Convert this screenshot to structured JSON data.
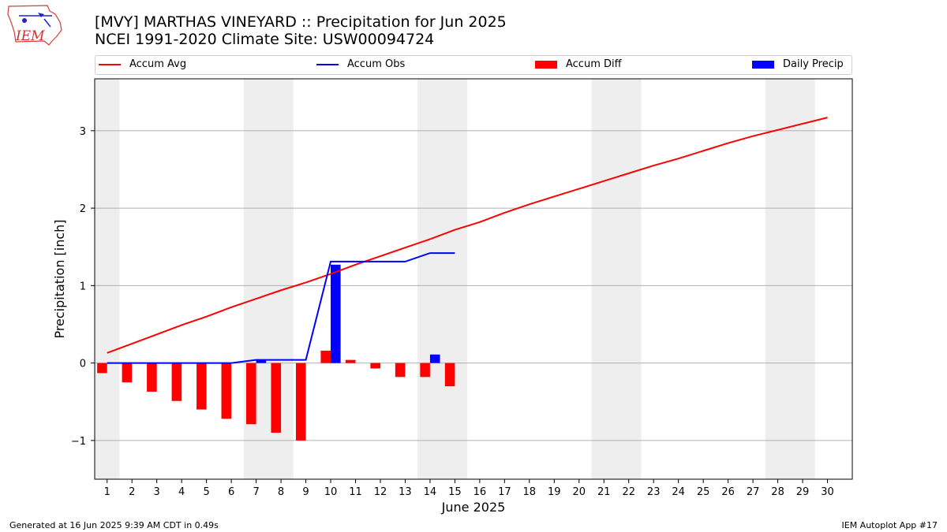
{
  "header": {
    "title_line1": "[MVY] MARTHAS VINEYARD :: Precipitation for Jun 2025",
    "title_line2": "NCEI 1991-2020 Climate Site: USW00094724"
  },
  "logo": {
    "text": "IEM",
    "icon": "iem-iowa-logo-icon"
  },
  "legend": {
    "position": "top",
    "items": [
      {
        "label": "Accum Avg",
        "kind": "line",
        "color": "#ff0000"
      },
      {
        "label": "Accum Obs",
        "kind": "line",
        "color": "#0000ff"
      },
      {
        "label": "Accum Diff",
        "kind": "box",
        "color": "#ff0000"
      },
      {
        "label": "Daily Precip",
        "kind": "box",
        "color": "#0000ff"
      }
    ]
  },
  "footer": {
    "left": "Generated at 16 Jun 2025 9:39 AM CDT in 0.49s",
    "right": "IEM Autoplot App #17"
  },
  "chart_data": {
    "type": "bar",
    "xlabel": "June 2025",
    "ylabel": "Precipitation [inch]",
    "xlim": [
      0.5,
      31.0
    ],
    "ylim": [
      -1.5,
      3.67
    ],
    "x_ticks": [
      1,
      2,
      3,
      4,
      5,
      6,
      7,
      8,
      9,
      10,
      11,
      12,
      13,
      14,
      15,
      16,
      17,
      18,
      19,
      20,
      21,
      22,
      23,
      24,
      25,
      26,
      27,
      28,
      29,
      30
    ],
    "y_ticks": [
      -1,
      0,
      1,
      2,
      3
    ],
    "y_tick_labels": [
      "−1",
      "0",
      "1",
      "2",
      "3"
    ],
    "grid": "y",
    "weekend_shading": [
      [
        0.5,
        1.5
      ],
      [
        6.5,
        8.5
      ],
      [
        13.5,
        15.5
      ],
      [
        20.5,
        22.5
      ],
      [
        27.5,
        29.5
      ]
    ],
    "shading_color": "#eeeeee",
    "series": [
      {
        "name": "Accum Avg",
        "type": "line",
        "color": "#ff0000",
        "x": [
          1,
          2,
          3,
          4,
          5,
          6,
          7,
          8,
          9,
          10,
          11,
          12,
          13,
          14,
          15,
          16,
          17,
          18,
          19,
          20,
          21,
          22,
          23,
          24,
          25,
          26,
          27,
          28,
          29,
          30
        ],
        "values": [
          0.13,
          0.25,
          0.37,
          0.49,
          0.6,
          0.72,
          0.83,
          0.94,
          1.04,
          1.15,
          1.27,
          1.38,
          1.49,
          1.6,
          1.72,
          1.82,
          1.94,
          2.05,
          2.15,
          2.25,
          2.35,
          2.45,
          2.55,
          2.64,
          2.74,
          2.84,
          2.93,
          3.01,
          3.09,
          3.17
        ]
      },
      {
        "name": "Accum Obs",
        "type": "line",
        "color": "#0000ff",
        "x": [
          1,
          2,
          3,
          4,
          5,
          6,
          7,
          8,
          9,
          10,
          11,
          12,
          13,
          14,
          15
        ],
        "values": [
          0,
          0,
          0,
          0,
          0,
          0,
          0.04,
          0.04,
          0.04,
          1.31,
          1.31,
          1.31,
          1.31,
          1.42,
          1.42
        ]
      },
      {
        "name": "Accum Diff",
        "type": "bar",
        "color": "#ff0000",
        "x": [
          1,
          2,
          3,
          4,
          5,
          6,
          7,
          8,
          9,
          10,
          11,
          12,
          13,
          14,
          15
        ],
        "values": [
          -0.13,
          -0.25,
          -0.37,
          -0.49,
          -0.6,
          -0.72,
          -0.79,
          -0.9,
          -1.0,
          0.16,
          0.04,
          -0.07,
          -0.18,
          -0.18,
          -0.3
        ]
      },
      {
        "name": "Daily Precip",
        "type": "bar",
        "color": "#0000ff",
        "x": [
          7,
          10,
          14
        ],
        "values": [
          0.04,
          1.27,
          0.11
        ]
      }
    ]
  }
}
